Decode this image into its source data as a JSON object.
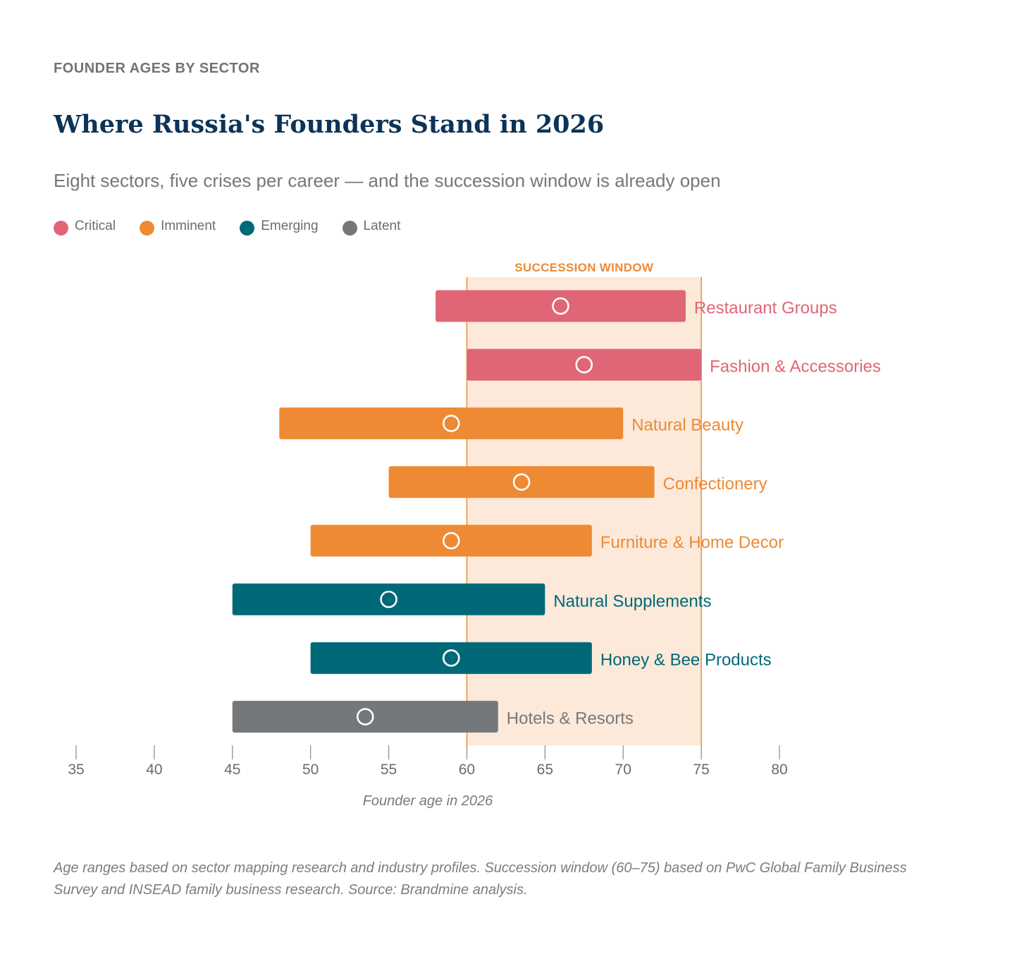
{
  "header": {
    "eyebrow": "FOUNDER AGES BY SECTOR",
    "title": "Where Russia's Founders Stand in 2026",
    "subtitle": "Eight sectors, five crises per career — and the succession window is already open"
  },
  "legend": [
    {
      "label": "Critical",
      "color": "#e06677"
    },
    {
      "label": "Imminent",
      "color": "#ee8a33"
    },
    {
      "label": "Emerging",
      "color": "#006977"
    },
    {
      "label": "Latent",
      "color": "#75787b"
    }
  ],
  "chart_data": {
    "type": "bar",
    "subtype": "range",
    "xlabel": "Founder age in 2026",
    "xlim": [
      35,
      80
    ],
    "xticks": [
      35,
      40,
      45,
      50,
      55,
      60,
      65,
      70,
      75,
      80
    ],
    "grid": false,
    "legend_position": "top-left",
    "succession_window": {
      "label": "SUCCESSION WINDOW",
      "start": 60,
      "end": 75,
      "color": "#ee8a33",
      "fill": "#fde9da"
    },
    "series": [
      {
        "name": "Restaurant Groups",
        "category": "Critical",
        "min": 58,
        "max": 74,
        "marker": 66
      },
      {
        "name": "Fashion & Accessories",
        "category": "Critical",
        "min": 60,
        "max": 75,
        "marker": 67.5
      },
      {
        "name": "Natural Beauty",
        "category": "Imminent",
        "min": 48,
        "max": 70,
        "marker": 59
      },
      {
        "name": "Confectionery",
        "category": "Imminent",
        "min": 55,
        "max": 72,
        "marker": 63.5
      },
      {
        "name": "Furniture & Home Decor",
        "category": "Imminent",
        "min": 50,
        "max": 68,
        "marker": 59
      },
      {
        "name": "Natural Supplements",
        "category": "Emerging",
        "min": 45,
        "max": 65,
        "marker": 55
      },
      {
        "name": "Honey & Bee Products",
        "category": "Emerging",
        "min": 50,
        "max": 68,
        "marker": 59
      },
      {
        "name": "Hotels & Resorts",
        "category": "Latent",
        "min": 45,
        "max": 62,
        "marker": 53.5
      }
    ],
    "colors": {
      "Critical": "#e06677",
      "Imminent": "#ee8a33",
      "Emerging": "#006977",
      "Latent": "#75787b",
      "axis": "#8a8a8a",
      "tick_label": "#6b6b6b"
    }
  },
  "footnote": "Age ranges based on sector mapping research and industry profiles. Succession window (60–75) based on PwC Global Family Business Survey and INSEAD family business research. Source: Brandmine analysis."
}
